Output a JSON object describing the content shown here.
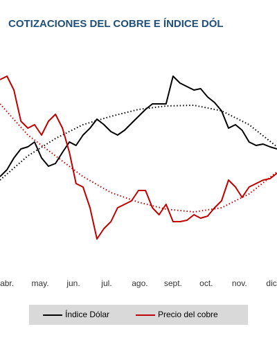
{
  "chart_data": {
    "type": "line",
    "title": "COTIZACIONES DEL COBRE E ÍNDICE DÓL",
    "x": [
      -0.21,
      0,
      0.21,
      0.42,
      0.63,
      0.83,
      1.04,
      1.25,
      1.46,
      1.67,
      1.88,
      2.08,
      2.29,
      2.5,
      2.71,
      2.92,
      3.13,
      3.33,
      3.54,
      3.75,
      3.96,
      4.17,
      4.38,
      4.58,
      4.79,
      5,
      5.21,
      5.42,
      5.63,
      5.83,
      6.04,
      6.25,
      6.46,
      6.67,
      6.88,
      7.08,
      7.29,
      7.5,
      7.71,
      7.92,
      8.13
    ],
    "xlim": [
      -0.21,
      8.13
    ],
    "xticks": [
      {
        "value": 0,
        "label": "abr."
      },
      {
        "value": 1,
        "label": "may."
      },
      {
        "value": 2,
        "label": "jun."
      },
      {
        "value": 3,
        "label": "jul."
      },
      {
        "value": 4,
        "label": "ago."
      },
      {
        "value": 5,
        "label": "sept."
      },
      {
        "value": 6,
        "label": "oct."
      },
      {
        "value": 7,
        "label": "nov."
      },
      {
        "value": 8,
        "label": "dic."
      }
    ],
    "ylim": [
      20,
      300
    ],
    "series": [
      {
        "name": "Índice Dólar",
        "color": "#000000",
        "values": [
          145,
          155,
          172,
          185,
          188,
          195,
          172,
          160,
          164,
          180,
          195,
          190,
          205,
          215,
          228,
          220,
          210,
          205,
          212,
          222,
          232,
          242,
          250,
          250,
          250,
          290,
          280,
          275,
          270,
          272,
          260,
          252,
          240,
          215,
          220,
          212,
          195,
          190,
          192,
          188,
          185
        ]
      },
      {
        "name": "Precio del cobre",
        "color": "#c00000",
        "values": [
          285,
          290,
          270,
          225,
          215,
          220,
          205,
          225,
          235,
          215,
          180,
          135,
          130,
          100,
          55,
          70,
          80,
          100,
          105,
          110,
          125,
          125,
          100,
          90,
          105,
          80,
          80,
          82,
          90,
          85,
          88,
          100,
          110,
          140,
          130,
          115,
          130,
          135,
          140,
          142,
          150
        ]
      }
    ],
    "trendlines": [
      {
        "color": "#000000",
        "x": [
          -0.21,
          0.63,
          1.46,
          2.29,
          3.13,
          3.96,
          4.79,
          5.63,
          6.46,
          7.29,
          8.13
        ],
        "values": [
          140,
          175,
          200,
          220,
          232,
          242,
          247,
          248,
          240,
          220,
          188
        ]
      },
      {
        "color": "#c00000",
        "x": [
          -0.21,
          0.63,
          1.46,
          2.29,
          3.13,
          3.96,
          4.79,
          5.63,
          6.46,
          7.29,
          8.13
        ],
        "values": [
          250,
          205,
          175,
          145,
          122,
          108,
          98,
          94,
          100,
          120,
          152
        ]
      }
    ],
    "legend": "bottom"
  }
}
